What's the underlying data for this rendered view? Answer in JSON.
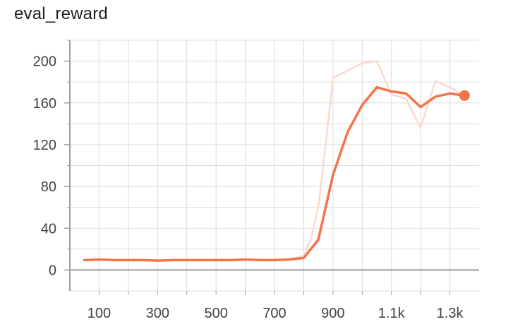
{
  "chart_data": {
    "type": "line",
    "title": "eval_reward",
    "xlabel": "",
    "ylabel": "",
    "xlim": [
      0,
      1400
    ],
    "ylim": [
      -20,
      220
    ],
    "x_ticks": [
      100,
      300,
      500,
      700,
      900,
      1100,
      1300
    ],
    "x_tick_labels": [
      "100",
      "300",
      "500",
      "700",
      "900",
      "1.1k",
      "1.3k"
    ],
    "y_ticks": [
      0,
      40,
      80,
      120,
      160,
      200
    ],
    "y_tick_labels": [
      "0",
      "40",
      "80",
      "120",
      "160",
      "200"
    ],
    "grid": true,
    "series": [
      {
        "style": "raw",
        "color": "#fcd9cf",
        "x": [
          50,
          100,
          150,
          200,
          250,
          300,
          350,
          400,
          450,
          500,
          550,
          600,
          650,
          700,
          750,
          800,
          825,
          850,
          875,
          900,
          950,
          1000,
          1050,
          1100,
          1150,
          1200,
          1250,
          1300,
          1350
        ],
        "values": [
          9.5,
          10,
          9.5,
          9.5,
          9.5,
          9,
          9.5,
          9.5,
          9.5,
          9.5,
          9.5,
          10,
          9.5,
          9.5,
          10,
          14,
          30,
          60,
          120,
          184,
          191,
          198,
          200,
          168,
          164,
          136,
          181,
          175,
          167
        ]
      },
      {
        "style": "smoothed",
        "color": "#f4744a",
        "x": [
          50,
          100,
          150,
          200,
          250,
          300,
          350,
          400,
          450,
          500,
          550,
          600,
          650,
          700,
          750,
          800,
          850,
          900,
          950,
          1000,
          1050,
          1100,
          1150,
          1200,
          1250,
          1300,
          1350
        ],
        "values": [
          9.5,
          10,
          9.5,
          9.5,
          9.5,
          9,
          9.5,
          9.5,
          9.5,
          9.5,
          9.5,
          10,
          9.5,
          9.5,
          10,
          11.5,
          29,
          91,
          132,
          158,
          175,
          171,
          169,
          156,
          166,
          169,
          167
        ]
      }
    ]
  }
}
